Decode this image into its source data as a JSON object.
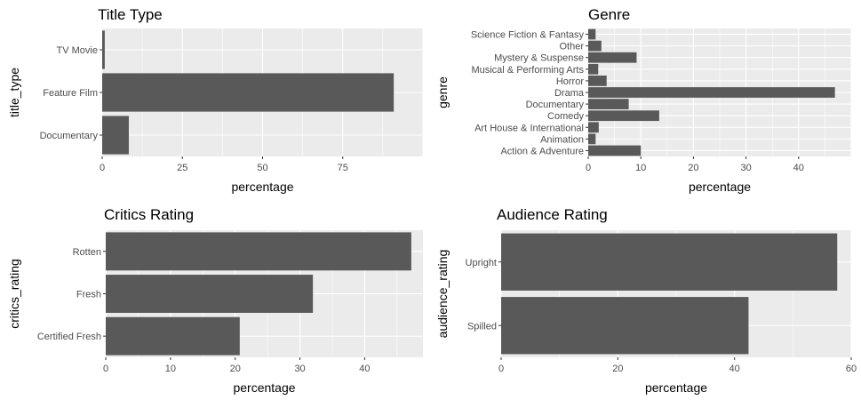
{
  "chart_data": [
    {
      "type": "bar",
      "orientation": "horizontal",
      "title": "Title Type",
      "xlabel": "percentage",
      "ylabel": "title_type",
      "categories": [
        "Documentary",
        "Feature Film",
        "TV Movie"
      ],
      "values": [
        8.3,
        90.9,
        0.8
      ],
      "xlim": [
        0,
        100
      ],
      "xticks": [
        0,
        25,
        50,
        75
      ],
      "bar_color": "#595959",
      "panel_color": "#EBEBEB",
      "grid": true
    },
    {
      "type": "bar",
      "orientation": "horizontal",
      "title": "Genre",
      "xlabel": "percentage",
      "ylabel": "genre",
      "categories": [
        "Action & Adventure",
        "Animation",
        "Art House & International",
        "Comedy",
        "Documentary",
        "Drama",
        "Horror",
        "Musical & Performing Arts",
        "Mystery & Suspense",
        "Other",
        "Science Fiction & Fantasy"
      ],
      "values": [
        10.0,
        1.4,
        2.0,
        13.5,
        7.7,
        46.9,
        3.5,
        1.9,
        9.2,
        2.5,
        1.4
      ],
      "xlim": [
        0,
        50
      ],
      "xticks": [
        0,
        10,
        20,
        30,
        40
      ],
      "bar_color": "#595959",
      "panel_color": "#EBEBEB",
      "grid": true
    },
    {
      "type": "bar",
      "orientation": "horizontal",
      "title": "Critics Rating",
      "xlabel": "percentage",
      "ylabel": "critics_rating",
      "categories": [
        "Certified Fresh",
        "Fresh",
        "Rotten"
      ],
      "values": [
        20.7,
        32.0,
        47.2
      ],
      "xlim": [
        0,
        49
      ],
      "xticks": [
        0,
        10,
        20,
        30,
        40
      ],
      "bar_color": "#595959",
      "panel_color": "#EBEBEB",
      "grid": true
    },
    {
      "type": "bar",
      "orientation": "horizontal",
      "title": "Audience Rating",
      "xlabel": "percentage",
      "ylabel": "audience_rating",
      "categories": [
        "Spilled",
        "Upright"
      ],
      "values": [
        42.4,
        57.6
      ],
      "xlim": [
        0,
        60
      ],
      "xticks": [
        0,
        20,
        40,
        60
      ],
      "bar_color": "#595959",
      "panel_color": "#EBEBEB",
      "grid": true
    }
  ]
}
